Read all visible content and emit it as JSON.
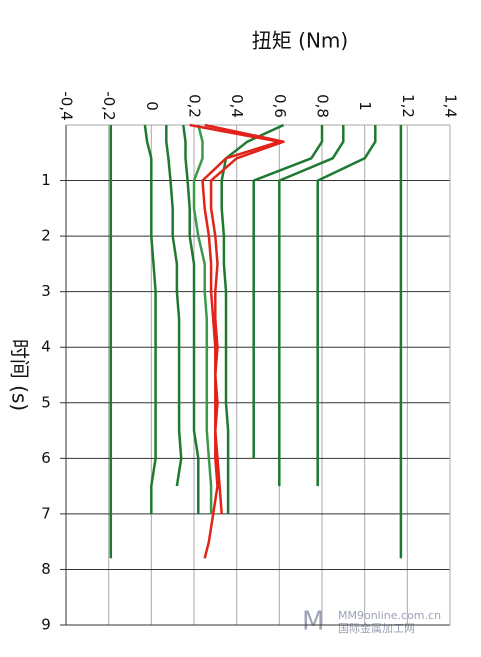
{
  "chart_data": {
    "type": "line",
    "horizontal": true,
    "title": "扭矩 (Nm)",
    "xlabel": "时间 (s)",
    "x": [
      0,
      0.3,
      0.6,
      1,
      1.5,
      2,
      2.5,
      3,
      3.5,
      4,
      4.5,
      5,
      5.5,
      6,
      6.5,
      7,
      7.5,
      7.8
    ],
    "xlim": [
      0,
      9
    ],
    "xticks": [
      1,
      2,
      3,
      4,
      5,
      6,
      7,
      8,
      9
    ],
    "ylim": [
      -0.4,
      1.4
    ],
    "yticks": [
      {
        "value": -0.4,
        "label": "-0,4"
      },
      {
        "value": -0.2,
        "label": "-0,2"
      },
      0,
      {
        "value": 0.2,
        "label": "0,2"
      },
      {
        "value": 0.4,
        "label": "0,4"
      },
      {
        "value": 0.6,
        "label": "0,6"
      },
      {
        "value": 0.8,
        "label": "0,8"
      },
      1,
      {
        "value": 1.2,
        "label": "1,2"
      },
      {
        "value": 1.4,
        "label": "1,4"
      }
    ],
    "grid": true,
    "series": [
      {
        "color": "#1e7a2e",
        "values": [
          -0.19,
          -0.19,
          -0.19,
          -0.19,
          -0.19,
          -0.19,
          -0.19,
          -0.19,
          -0.19,
          -0.19,
          -0.19,
          -0.19,
          -0.19,
          -0.19,
          -0.19,
          -0.19,
          -0.19,
          -0.19
        ]
      },
      {
        "color": "#1e7a2e",
        "values": [
          1.17,
          1.17,
          1.17,
          1.17,
          1.17,
          1.17,
          1.17,
          1.17,
          1.17,
          1.17,
          1.17,
          1.17,
          1.17,
          1.17,
          1.17,
          1.17,
          1.17,
          1.17
        ]
      },
      {
        "color": "#1e7a2e",
        "values": [
          1.05,
          1.05,
          1.0,
          0.78,
          0.78,
          0.78,
          0.78,
          0.78,
          0.78,
          0.78,
          0.78,
          0.78,
          0.78,
          0.78,
          0.78,
          null,
          null,
          null
        ]
      },
      {
        "color": "#1e7a2e",
        "values": [
          0.9,
          0.9,
          0.85,
          0.6,
          0.6,
          0.6,
          0.6,
          0.6,
          0.6,
          0.6,
          0.6,
          0.6,
          0.6,
          0.6,
          0.6,
          null,
          null,
          null
        ]
      },
      {
        "color": "#1e7a2e",
        "values": [
          0.8,
          0.8,
          0.75,
          0.48,
          0.48,
          0.48,
          0.48,
          0.48,
          0.48,
          0.48,
          0.48,
          0.48,
          0.48,
          0.48,
          null,
          null,
          null,
          null
        ]
      },
      {
        "color": "#1e7a2e",
        "values": [
          0.62,
          0.45,
          0.35,
          0.33,
          0.33,
          0.34,
          0.34,
          0.35,
          0.35,
          0.35,
          0.35,
          0.35,
          0.36,
          0.36,
          0.36,
          0.36,
          null,
          null
        ]
      },
      {
        "color": "#1e7a2e",
        "values": [
          -0.03,
          -0.02,
          0,
          0,
          0,
          0,
          0.01,
          0.02,
          0.02,
          0.02,
          0.02,
          0.02,
          0.02,
          0.02,
          0,
          0,
          null,
          null
        ]
      },
      {
        "color": "#1e7a2e",
        "values": [
          0.07,
          0.07,
          0.08,
          0.09,
          0.1,
          0.1,
          0.12,
          0.12,
          0.13,
          0.13,
          0.13,
          0.13,
          0.13,
          0.14,
          0.12,
          null,
          null,
          null
        ]
      },
      {
        "color": "#1e7a2e",
        "values": [
          0.15,
          0.16,
          0.16,
          0.17,
          0.18,
          0.18,
          0.2,
          0.2,
          0.2,
          0.2,
          0.2,
          0.2,
          0.2,
          0.22,
          0.22,
          0.22,
          null,
          null
        ]
      },
      {
        "color": "#3a9a4a",
        "values": [
          0.22,
          0.24,
          0.24,
          0.2,
          0.2,
          0.22,
          0.25,
          0.25,
          0.26,
          0.26,
          0.26,
          0.26,
          0.26,
          0.27,
          0.28,
          0.28,
          null,
          null
        ]
      },
      {
        "color": "#e2231a",
        "values": [
          0.18,
          0.6,
          0.35,
          0.24,
          0.25,
          0.27,
          0.28,
          0.28,
          0.29,
          0.3,
          0.3,
          0.3,
          0.3,
          0.3,
          0.31,
          0.29,
          0.27,
          0.25
        ]
      },
      {
        "color": "#e2231a",
        "values": [
          0.25,
          0.62,
          0.4,
          0.28,
          0.28,
          0.3,
          0.31,
          0.3,
          0.3,
          0.31,
          0.3,
          0.31,
          0.3,
          0.31,
          0.32,
          0.33,
          null,
          null
        ]
      }
    ]
  },
  "watermark": {
    "site": "MM9online.com.cn",
    "name": "国际金属加工网"
  }
}
